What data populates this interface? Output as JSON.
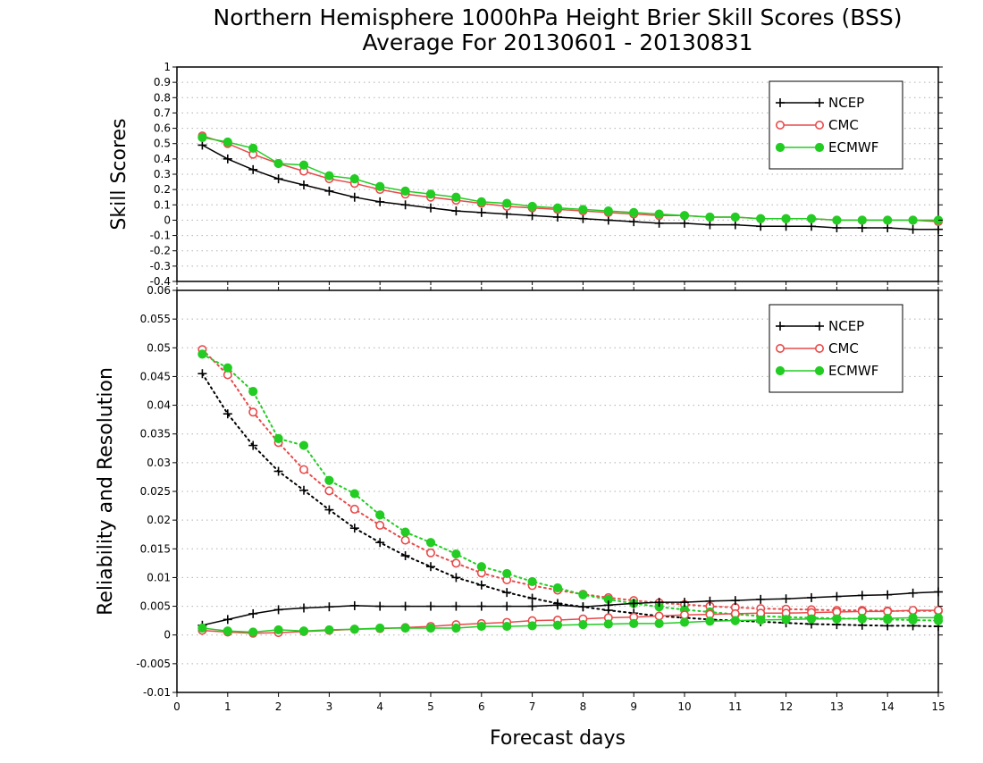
{
  "title": {
    "line1": "Northern Hemisphere 1000hPa Height Brier Skill Scores (BSS)",
    "line2": "Average For 20130601 - 20130831"
  },
  "colors": {
    "NCEP": "#000000",
    "CMC": "#e84a4a",
    "ECMWF": "#22cc22",
    "grid": "#b0b0b0"
  },
  "chart_data": [
    {
      "type": "line",
      "panel": "top",
      "ylabel": "Skill Scores",
      "xlabel": "",
      "xlim": [
        0,
        15
      ],
      "ylim": [
        -0.4,
        1
      ],
      "yticks": [
        -0.4,
        -0.3,
        -0.2,
        -0.1,
        0,
        0.1,
        0.2,
        0.3,
        0.4,
        0.5,
        0.6,
        0.7,
        0.8,
        0.9,
        1
      ],
      "ytick_labels": [
        "-0.4",
        "-0.3",
        "-0.2",
        "-0.1",
        "0",
        "0.1",
        "0.2",
        "0.3",
        "0.4",
        "0.5",
        "0.6",
        "0.7",
        "0.8",
        "0.9",
        "1"
      ],
      "grid": "horizontal dotted",
      "legend": "top-right",
      "x": [
        0.5,
        1,
        1.5,
        2,
        2.5,
        3,
        3.5,
        4,
        4.5,
        5,
        5.5,
        6,
        6.5,
        7,
        7.5,
        8,
        8.5,
        9,
        9.5,
        10,
        10.5,
        11,
        11.5,
        12,
        12.5,
        13,
        13.5,
        14,
        14.5,
        15
      ],
      "series": [
        {
          "name": "NCEP",
          "marker": "plus",
          "style": "solid",
          "values": [
            0.49,
            0.4,
            0.33,
            0.27,
            0.23,
            0.19,
            0.15,
            0.12,
            0.1,
            0.08,
            0.06,
            0.05,
            0.04,
            0.03,
            0.02,
            0.01,
            0.0,
            -0.01,
            -0.02,
            -0.02,
            -0.03,
            -0.03,
            -0.04,
            -0.04,
            -0.04,
            -0.05,
            -0.05,
            -0.05,
            -0.06,
            -0.06
          ]
        },
        {
          "name": "CMC",
          "marker": "open-circle",
          "style": "solid",
          "values": [
            0.55,
            0.5,
            0.43,
            0.37,
            0.32,
            0.27,
            0.24,
            0.2,
            0.17,
            0.15,
            0.13,
            0.11,
            0.09,
            0.08,
            0.07,
            0.06,
            0.05,
            0.04,
            0.03,
            0.03,
            0.02,
            0.02,
            0.01,
            0.01,
            0.01,
            0.0,
            0.0,
            0.0,
            0.0,
            -0.01
          ]
        },
        {
          "name": "ECMWF",
          "marker": "filled-circle",
          "style": "solid",
          "values": [
            0.54,
            0.51,
            0.47,
            0.37,
            0.36,
            0.29,
            0.27,
            0.22,
            0.19,
            0.17,
            0.15,
            0.12,
            0.11,
            0.09,
            0.08,
            0.07,
            0.06,
            0.05,
            0.04,
            0.03,
            0.02,
            0.02,
            0.01,
            0.01,
            0.01,
            0.0,
            0.0,
            0.0,
            0.0,
            0.0
          ]
        }
      ]
    },
    {
      "type": "line",
      "panel": "bottom",
      "ylabel": "Reliability and Resolution",
      "xlabel": "Forecast days",
      "xlim": [
        0,
        15
      ],
      "ylim": [
        -0.01,
        0.06
      ],
      "yticks": [
        -0.01,
        -0.005,
        0,
        0.005,
        0.01,
        0.015,
        0.02,
        0.025,
        0.03,
        0.035,
        0.04,
        0.045,
        0.05,
        0.055,
        0.06
      ],
      "ytick_labels": [
        "-0.01",
        "-0.005",
        "0",
        "0.005",
        "0.01",
        "0.015",
        "0.02",
        "0.025",
        "0.03",
        "0.035",
        "0.04",
        "0.045",
        "0.05",
        "0.055",
        "0.06"
      ],
      "xticks": [
        0,
        1,
        2,
        3,
        4,
        5,
        6,
        7,
        8,
        9,
        10,
        11,
        12,
        13,
        14,
        15
      ],
      "xtick_labels": [
        "0",
        "1",
        "2",
        "3",
        "4",
        "5",
        "6",
        "7",
        "8",
        "9",
        "10",
        "11",
        "12",
        "13",
        "14",
        "15"
      ],
      "grid": "horizontal dotted",
      "legend": "top-right",
      "x": [
        0.5,
        1,
        1.5,
        2,
        2.5,
        3,
        3.5,
        4,
        4.5,
        5,
        5.5,
        6,
        6.5,
        7,
        7.5,
        8,
        8.5,
        9,
        9.5,
        10,
        10.5,
        11,
        11.5,
        12,
        12.5,
        13,
        13.5,
        14,
        14.5,
        15
      ],
      "series": [
        {
          "name": "NCEP",
          "metric": "resolution",
          "marker": "plus",
          "style": "dotted",
          "values": [
            0.0455,
            0.0385,
            0.033,
            0.0285,
            0.0252,
            0.0218,
            0.0186,
            0.0161,
            0.0138,
            0.0119,
            0.01,
            0.0087,
            0.0074,
            0.0064,
            0.0055,
            0.0049,
            0.0043,
            0.0038,
            0.0033,
            0.003,
            0.0027,
            0.0025,
            0.0023,
            0.0021,
            0.0019,
            0.0018,
            0.0017,
            0.0016,
            0.0016,
            0.0015
          ]
        },
        {
          "name": "CMC",
          "metric": "resolution",
          "marker": "open-circle",
          "style": "dotted",
          "values": [
            0.0497,
            0.0453,
            0.0388,
            0.0335,
            0.0288,
            0.0251,
            0.0219,
            0.0191,
            0.0165,
            0.0143,
            0.0125,
            0.0108,
            0.0096,
            0.0086,
            0.0078,
            0.0071,
            0.0065,
            0.006,
            0.0056,
            0.0053,
            0.005,
            0.0048,
            0.0046,
            0.0045,
            0.0044,
            0.0043,
            0.0043,
            0.0042,
            0.0042,
            0.0042
          ]
        },
        {
          "name": "ECMWF",
          "metric": "resolution",
          "marker": "filled-circle",
          "style": "dotted",
          "values": [
            0.0489,
            0.0465,
            0.0424,
            0.0342,
            0.033,
            0.0269,
            0.0246,
            0.0209,
            0.0179,
            0.0161,
            0.0141,
            0.0119,
            0.0107,
            0.0093,
            0.0082,
            0.007,
            0.0062,
            0.0055,
            0.0049,
            0.0044,
            0.004,
            0.0036,
            0.0033,
            0.0031,
            0.003,
            0.0029,
            0.0028,
            0.0027,
            0.0026,
            0.0025
          ]
        },
        {
          "name": "NCEP",
          "metric": "reliability",
          "marker": "plus",
          "style": "solid",
          "values": [
            0.0017,
            0.0027,
            0.0037,
            0.0044,
            0.0047,
            0.0049,
            0.0051,
            0.005,
            0.005,
            0.005,
            0.005,
            0.005,
            0.005,
            0.005,
            0.0052,
            0.0049,
            0.0052,
            0.0055,
            0.0057,
            0.0057,
            0.0059,
            0.006,
            0.0062,
            0.0063,
            0.0065,
            0.0067,
            0.0069,
            0.007,
            0.0073,
            0.0075
          ]
        },
        {
          "name": "CMC",
          "metric": "reliability",
          "marker": "open-circle",
          "style": "solid",
          "values": [
            0.0008,
            0.0005,
            0.0003,
            0.0004,
            0.0006,
            0.0008,
            0.001,
            0.0011,
            0.0013,
            0.0015,
            0.0018,
            0.002,
            0.0022,
            0.0025,
            0.0026,
            0.0028,
            0.003,
            0.0031,
            0.0033,
            0.0035,
            0.0036,
            0.0037,
            0.0038,
            0.0038,
            0.0039,
            0.004,
            0.0041,
            0.0041,
            0.0043,
            0.0043
          ]
        },
        {
          "name": "ECMWF",
          "metric": "reliability",
          "marker": "filled-circle",
          "style": "solid",
          "values": [
            0.0012,
            0.0007,
            0.0005,
            0.0009,
            0.0007,
            0.0009,
            0.001,
            0.0012,
            0.0012,
            0.0012,
            0.0012,
            0.0015,
            0.0015,
            0.0016,
            0.0017,
            0.0018,
            0.0019,
            0.002,
            0.002,
            0.0022,
            0.0024,
            0.0025,
            0.0026,
            0.0027,
            0.0028,
            0.0028,
            0.0029,
            0.0029,
            0.003,
            0.003
          ]
        }
      ]
    }
  ]
}
